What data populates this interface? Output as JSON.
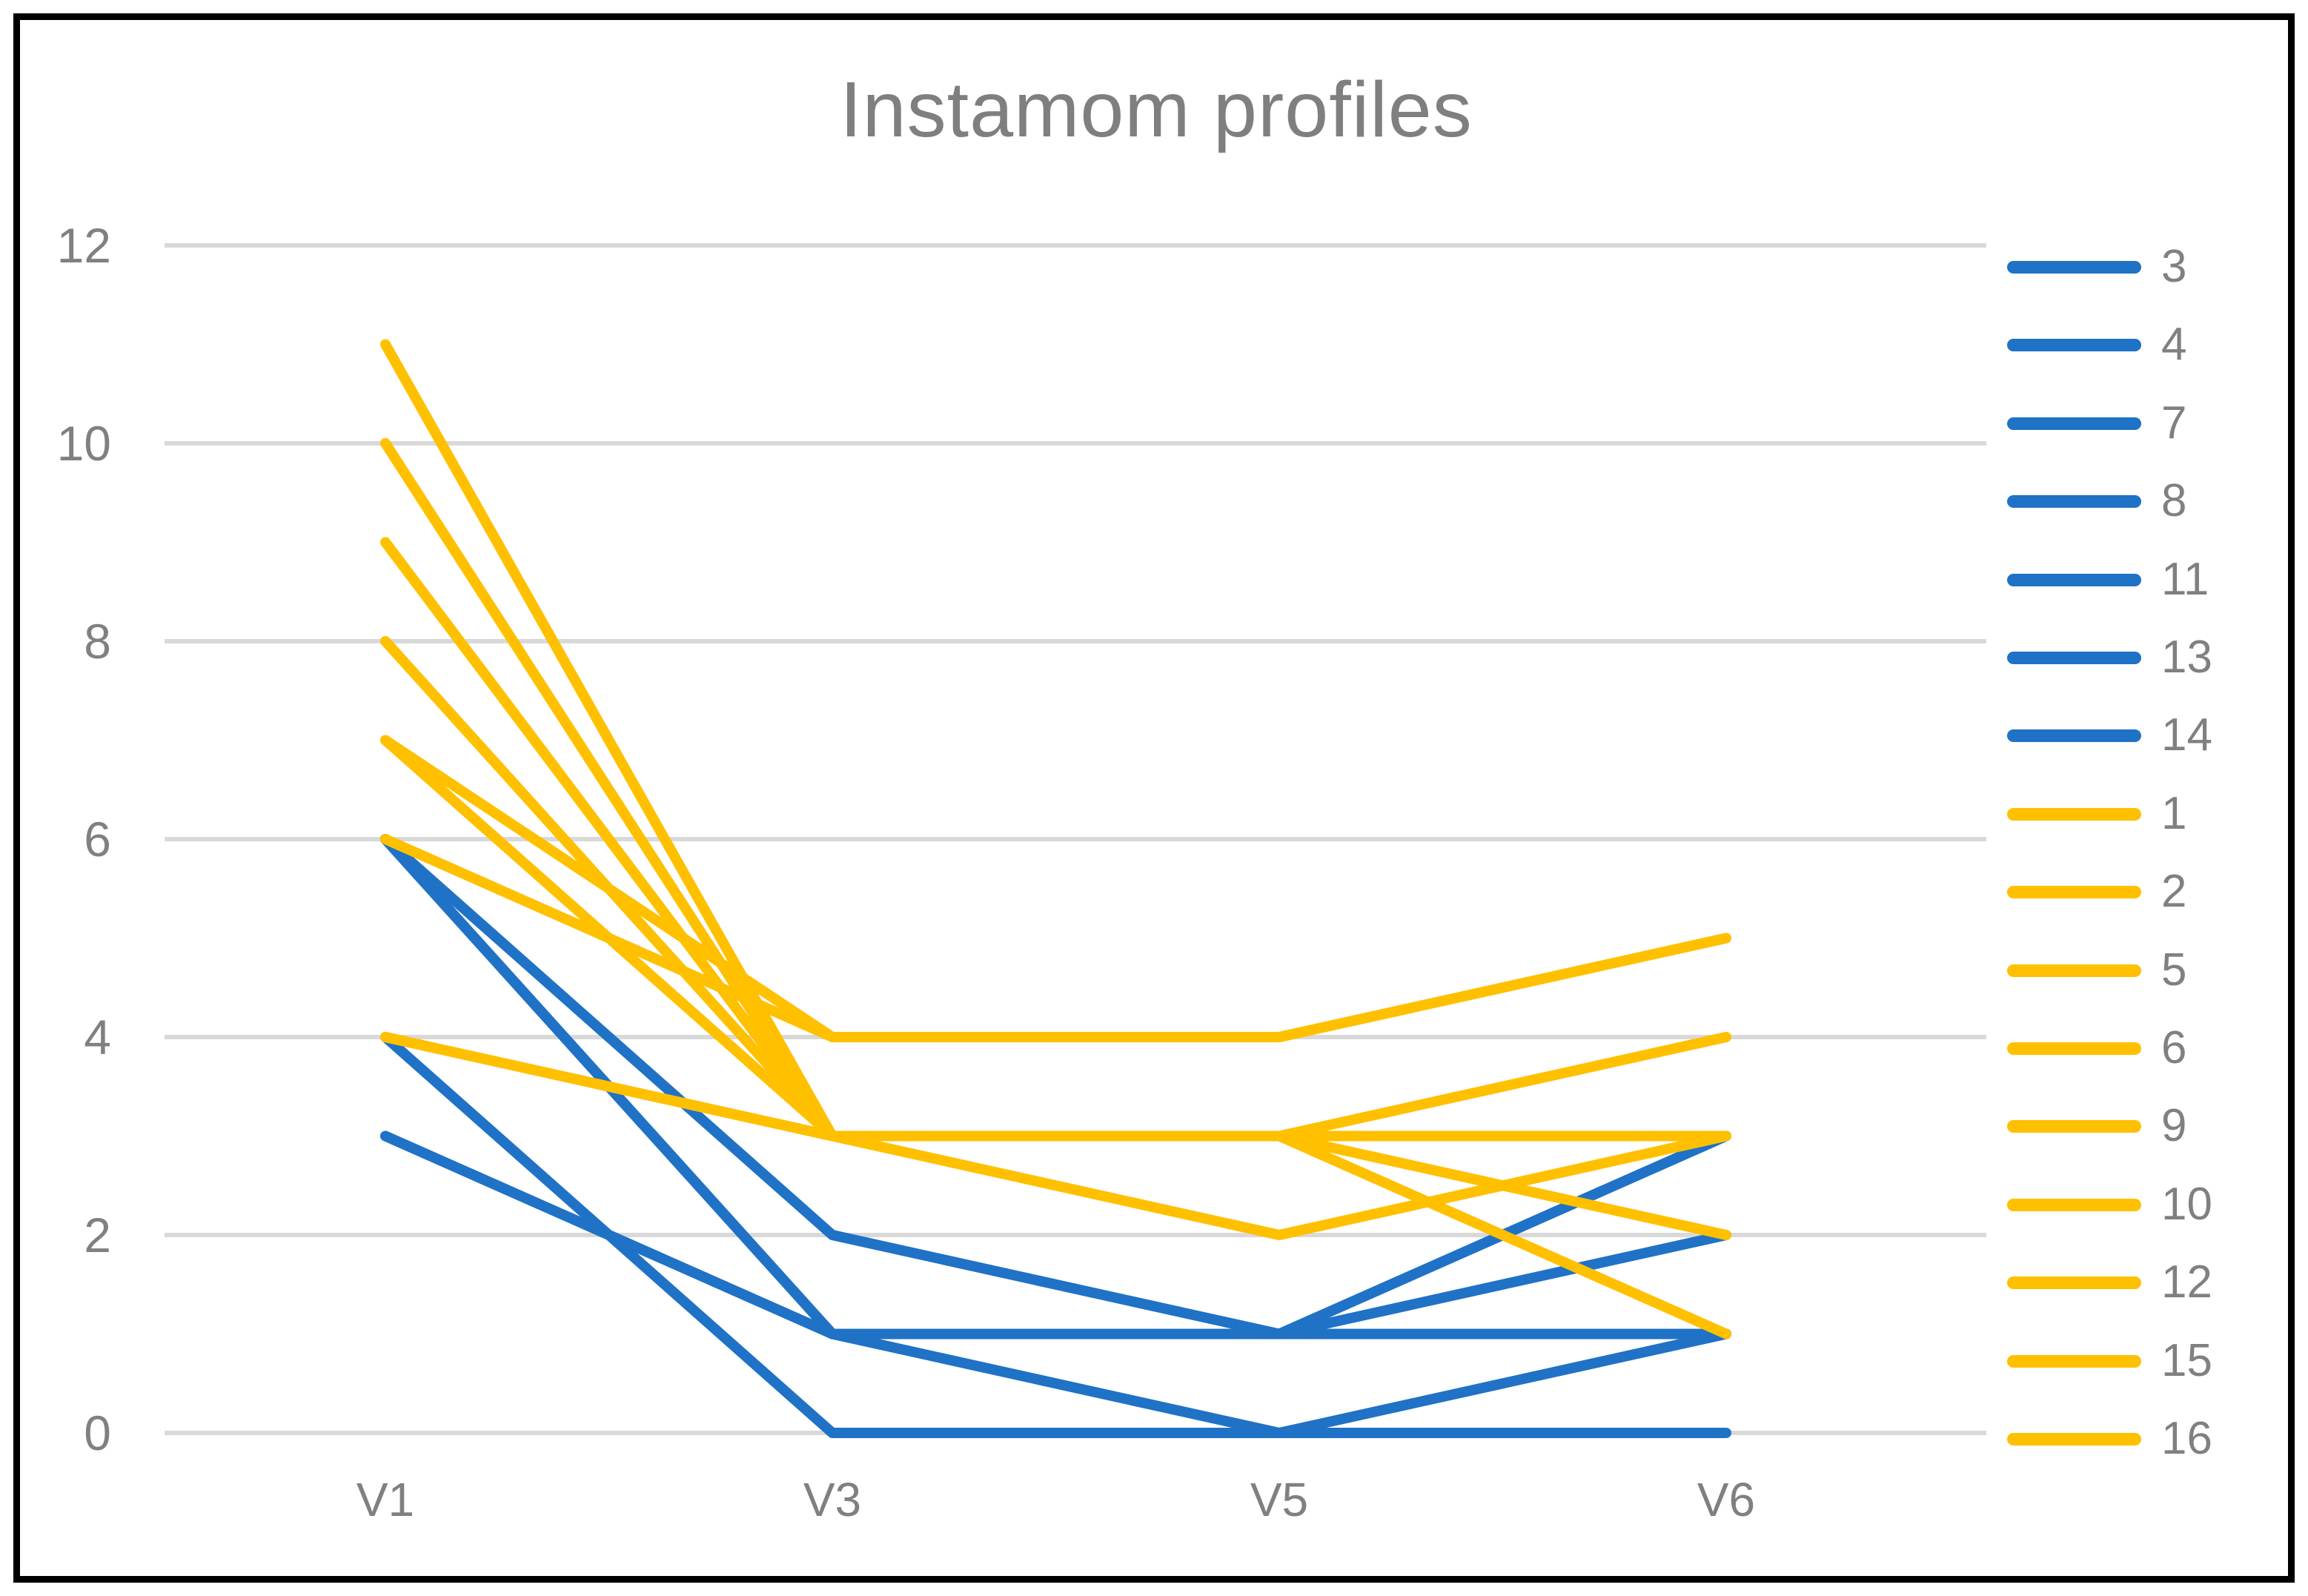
{
  "chart_data": {
    "type": "line",
    "title": "Instamom profiles",
    "categories": [
      "V1",
      "V3",
      "V5",
      "V6"
    ],
    "xlabel": "",
    "ylabel": "",
    "ylim": [
      0,
      12
    ],
    "y_ticks": [
      0,
      2,
      4,
      6,
      8,
      10,
      12
    ],
    "grid": true,
    "legend_position": "right",
    "series": [
      {
        "name": "3",
        "color_role": "blue",
        "values": [
          6,
          2,
          1,
          1
        ]
      },
      {
        "name": "4",
        "color_role": "blue",
        "values": [
          6,
          1,
          1,
          3
        ]
      },
      {
        "name": "7",
        "color_role": "blue",
        "values": [
          3,
          1,
          1,
          2
        ]
      },
      {
        "name": "8",
        "color_role": "blue",
        "values": [
          4,
          0,
          0,
          0
        ]
      },
      {
        "name": "11",
        "color_role": "blue",
        "values": [
          3,
          1,
          0,
          1
        ]
      },
      {
        "name": "13",
        "color_role": "blue",
        "values": [
          6,
          1,
          1,
          3
        ]
      },
      {
        "name": "14",
        "color_role": "blue",
        "values": [
          6,
          1,
          1,
          1
        ]
      },
      {
        "name": "1",
        "color_role": "yellow",
        "values": [
          7,
          4,
          4,
          5
        ]
      },
      {
        "name": "2",
        "color_role": "yellow",
        "values": [
          11,
          3,
          3,
          3
        ]
      },
      {
        "name": "5",
        "color_role": "yellow",
        "values": [
          10,
          3,
          3,
          3
        ]
      },
      {
        "name": "6",
        "color_role": "yellow",
        "values": [
          9,
          3,
          3,
          4
        ]
      },
      {
        "name": "9",
        "color_role": "yellow",
        "values": [
          8,
          3,
          3,
          3
        ]
      },
      {
        "name": "10",
        "color_role": "yellow",
        "values": [
          7,
          3,
          2,
          3
        ]
      },
      {
        "name": "12",
        "color_role": "yellow",
        "values": [
          6,
          4,
          4,
          5
        ]
      },
      {
        "name": "15",
        "color_role": "yellow",
        "values": [
          4,
          3,
          3,
          1
        ]
      },
      {
        "name": "16",
        "color_role": "yellow",
        "values": [
          4,
          3,
          3,
          2
        ]
      }
    ]
  },
  "colors": {
    "blue": "#1F72C6",
    "yellow": "#FFC000",
    "gridline": "#D9D9D9",
    "tick_text": "#808080",
    "title_text": "#7F7F7F",
    "border": "#000000"
  }
}
